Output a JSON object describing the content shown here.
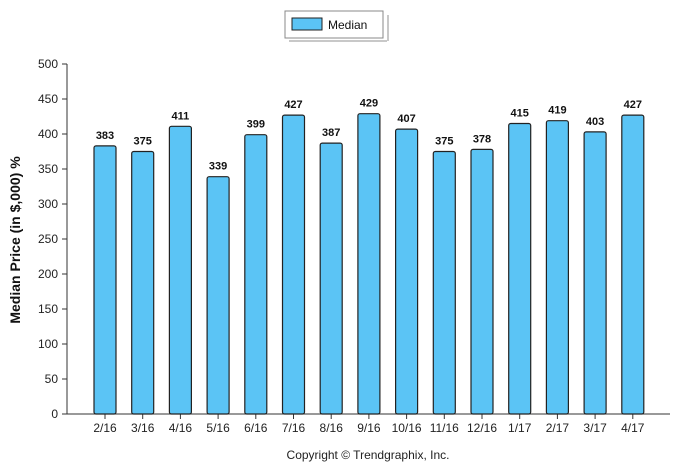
{
  "chart_data": {
    "type": "bar",
    "categories": [
      "2/16",
      "3/16",
      "4/16",
      "5/16",
      "6/16",
      "7/16",
      "8/16",
      "9/16",
      "10/16",
      "11/16",
      "12/16",
      "1/17",
      "2/17",
      "3/17",
      "4/17"
    ],
    "series": [
      {
        "name": "Median",
        "values": [
          383,
          375,
          411,
          339,
          399,
          427,
          387,
          429,
          407,
          375,
          378,
          415,
          419,
          403,
          427
        ]
      }
    ],
    "ylabel": "Median Price (in $,000) %",
    "xlabel": "",
    "ylim": [
      0,
      500
    ],
    "yticks": [
      0,
      50,
      100,
      150,
      200,
      250,
      300,
      350,
      400,
      450,
      500
    ],
    "legend_position": "top-center",
    "grid": false,
    "bar_color": "#5bc4f5"
  },
  "footer": {
    "copyright": "Copyright © Trendgraphix, Inc."
  }
}
